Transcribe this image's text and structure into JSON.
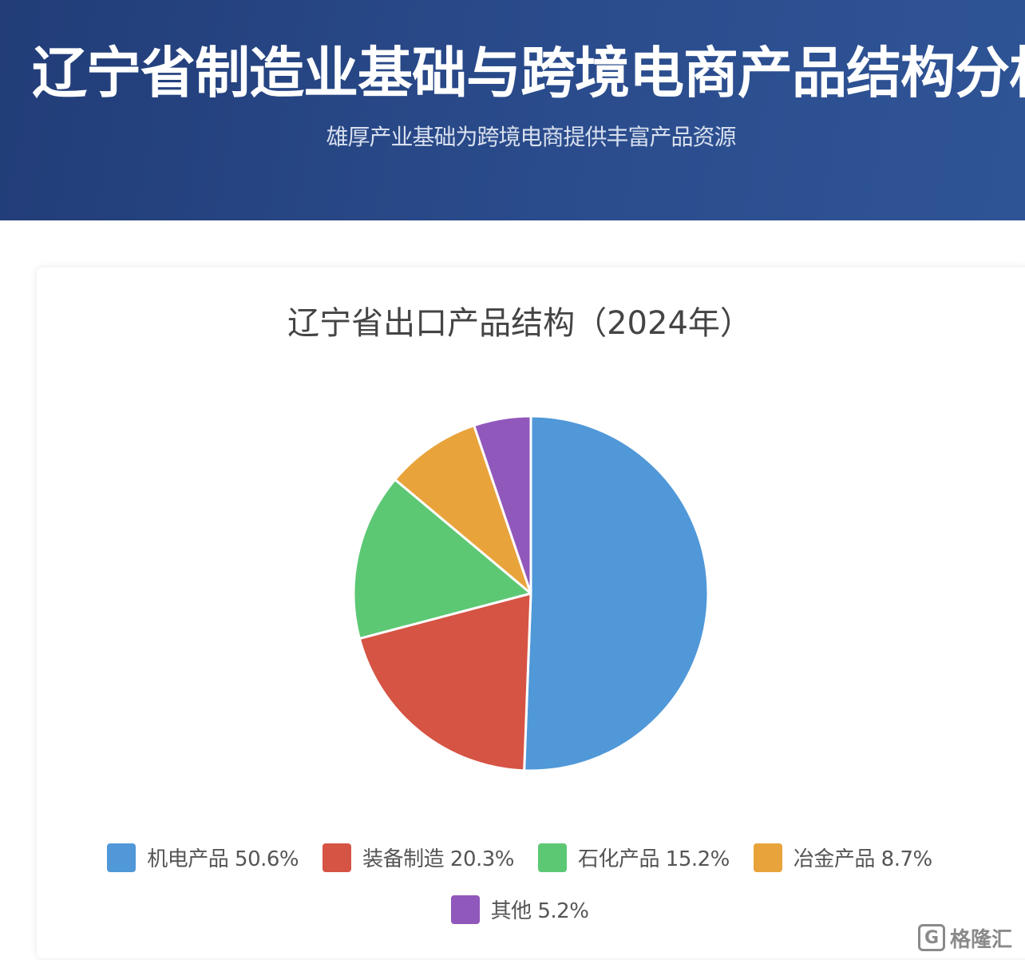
{
  "header": {
    "title": "辽宁省制造业基础与跨境电商产品结构分析",
    "subtitle": "雄厚产业基础为跨境电商提供丰富产品资源"
  },
  "chart_data": {
    "type": "pie",
    "title": "辽宁省出口产品结构（2024年）",
    "legend_position": "bottom",
    "slices": [
      {
        "label": "机电产品",
        "value": 50.6,
        "color": "#5098d8",
        "legend_text": "机电产品 50.6%"
      },
      {
        "label": "装备制造",
        "value": 20.3,
        "color": "#d65444",
        "legend_text": "装备制造 20.3%"
      },
      {
        "label": "石化产品",
        "value": 15.2,
        "color": "#5cc874",
        "legend_text": "石化产品 15.2%"
      },
      {
        "label": "冶金产品",
        "value": 8.7,
        "color": "#e8a33b",
        "legend_text": "冶金产品 8.7%"
      },
      {
        "label": "其他",
        "value": 5.2,
        "color": "#9158bc",
        "legend_text": "其他 5.2%"
      }
    ]
  },
  "watermark": {
    "text": "格隆汇",
    "icon": "glh-logo-icon"
  }
}
